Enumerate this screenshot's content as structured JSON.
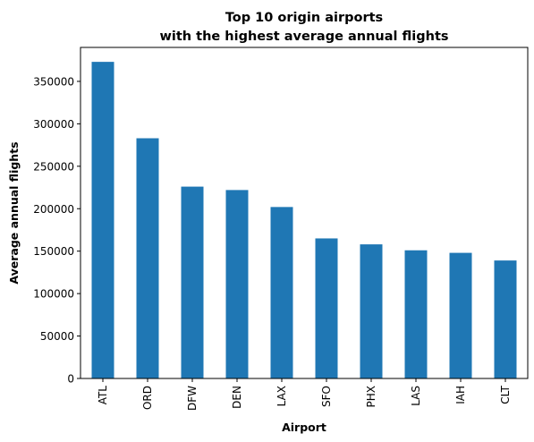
{
  "chart_data": {
    "type": "bar",
    "title_lines": [
      "Top 10 origin airports",
      "with the highest average annual flights"
    ],
    "xlabel": "Airport",
    "ylabel": "Average annual flights",
    "categories": [
      "ATL",
      "ORD",
      "DFW",
      "DEN",
      "LAX",
      "SFO",
      "PHX",
      "LAS",
      "IAH",
      "CLT"
    ],
    "values": [
      373000,
      283000,
      226000,
      222000,
      202000,
      165000,
      158000,
      151000,
      148000,
      139000
    ],
    "ylim": [
      0,
      390000
    ],
    "yticks": [
      "0",
      "50000",
      "100000",
      "150000",
      "200000",
      "250000",
      "300000",
      "350000"
    ],
    "ytick_values": [
      0,
      50000,
      100000,
      150000,
      200000,
      250000,
      300000,
      350000
    ],
    "bar_color": "#1f77b4",
    "grid": false,
    "legend": "none"
  }
}
